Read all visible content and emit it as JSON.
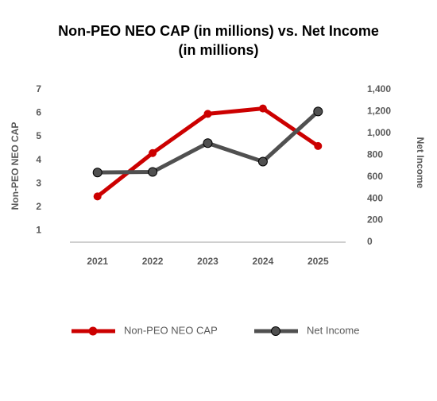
{
  "chart_data": {
    "type": "line",
    "title": "Non-PEO NEO CAP (in millions) vs. Net Income",
    "subtitle": "(in millions)",
    "ylabel": "Non-PEO NEO CAP",
    "y2label": "Net Income",
    "categories": [
      "2021",
      "2022",
      "2023",
      "2024",
      "2025"
    ],
    "series": [
      {
        "name": "Non-PEO NEO CAP",
        "color": "#cc0000",
        "values": [
          2.45,
          4.3,
          5.97,
          6.2,
          4.6
        ]
      },
      {
        "name": "Net Income",
        "color": "#505050",
        "axis": "y2",
        "values": [
          640,
          645,
          910,
          740,
          1200
        ]
      }
    ],
    "ylim": [
      0.5,
      7
    ],
    "yticks": [
      1,
      2,
      3,
      4,
      5,
      6,
      7
    ],
    "y2lim": [
      0,
      1400
    ],
    "y2ticks": [
      0,
      200,
      400,
      600,
      800,
      {
        "value": 1000,
        "label": "1,000"
      },
      {
        "value": 1200,
        "label": "1,200"
      },
      {
        "value": 1400,
        "label": "1,400"
      }
    ],
    "legend": "bottom"
  }
}
